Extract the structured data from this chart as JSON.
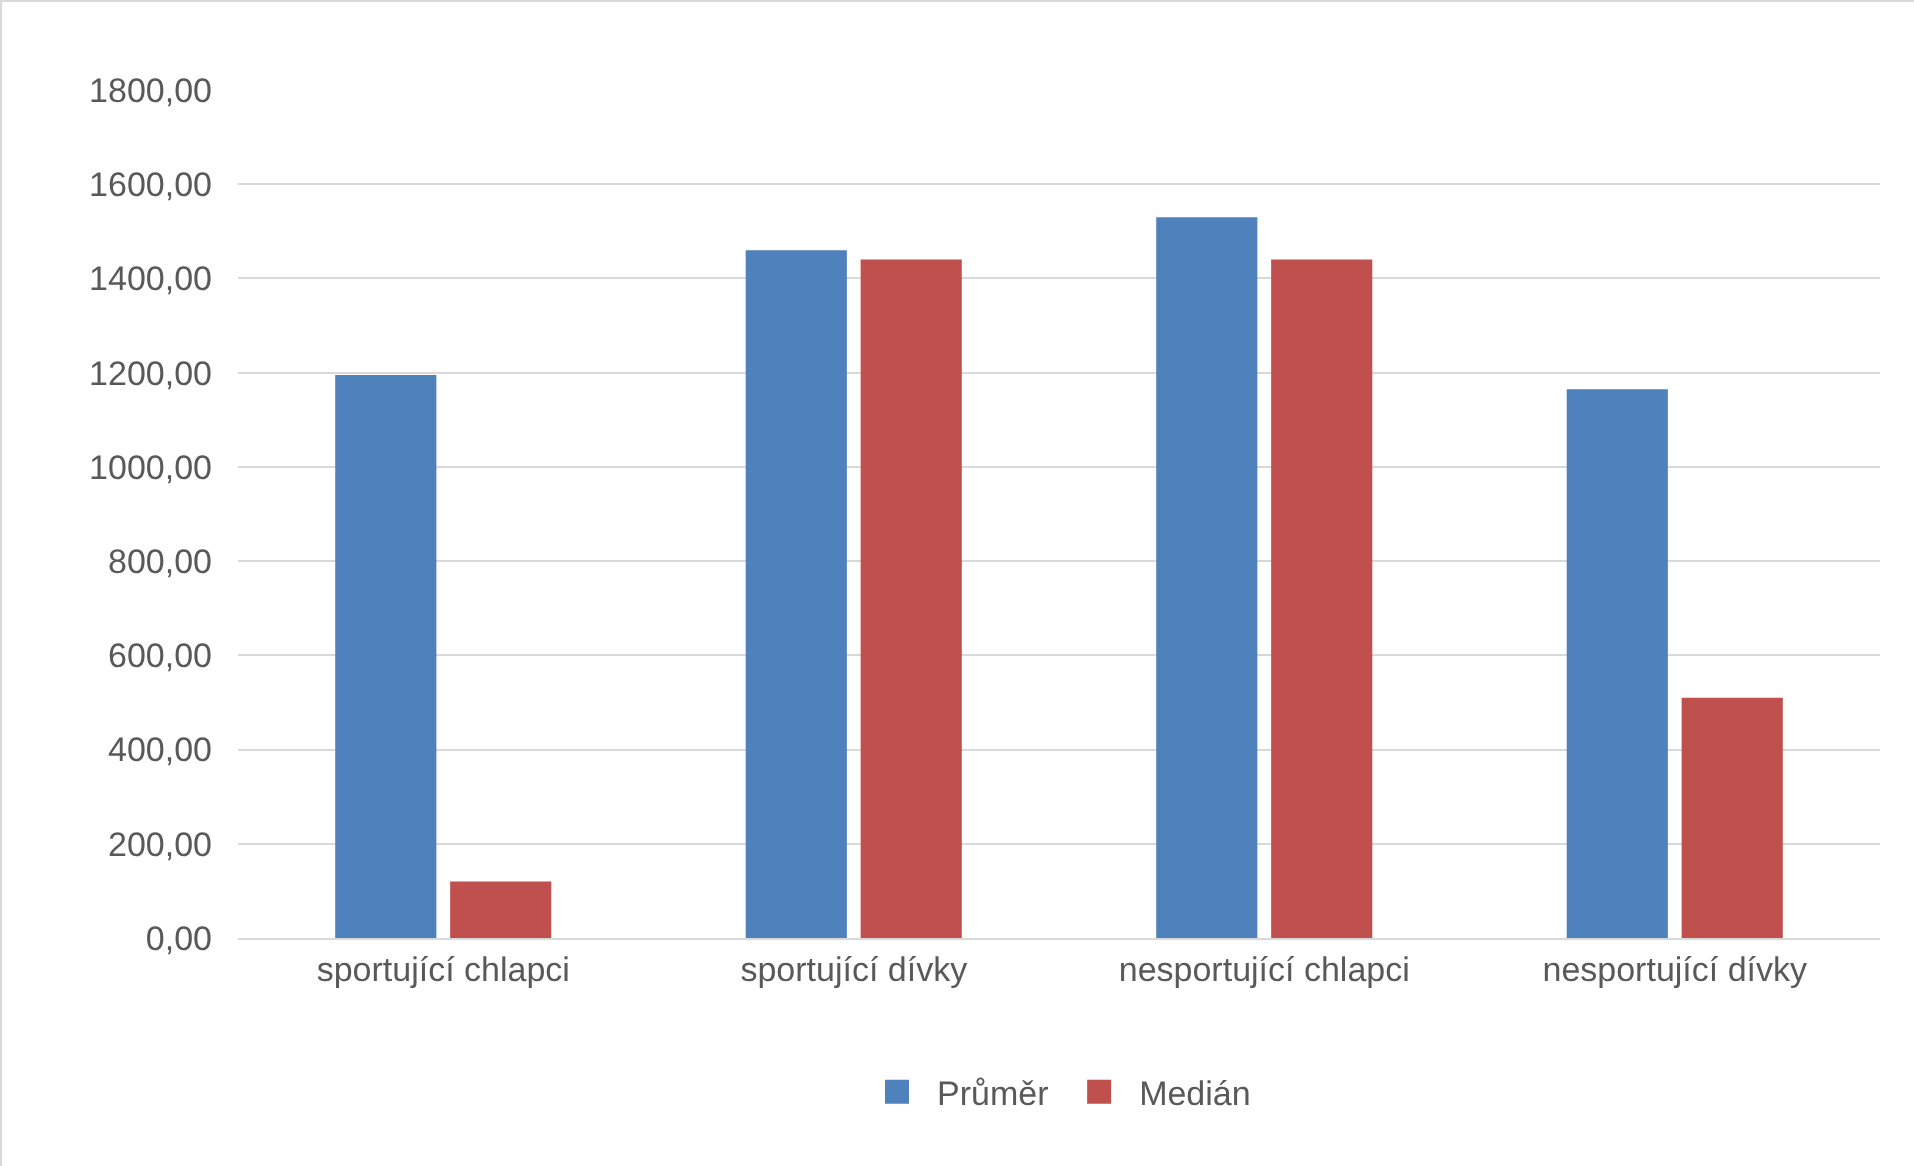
{
  "chart_data": {
    "type": "bar",
    "categories": [
      "sportující chlapci",
      "sportující dívky",
      "nesportující chlapci",
      "nesportující dívky"
    ],
    "series": [
      {
        "name": "Průměr",
        "color": "#4f81bd",
        "values": [
          1195,
          1460,
          1530,
          1165
        ]
      },
      {
        "name": "Medián",
        "color": "#c0504d",
        "values": [
          120,
          1440,
          1440,
          510
        ]
      }
    ],
    "ylim": [
      0,
      1800
    ],
    "yticks": [
      {
        "value": 0,
        "label": "0,00"
      },
      {
        "value": 200,
        "label": "200,00"
      },
      {
        "value": 400,
        "label": "400,00"
      },
      {
        "value": 600,
        "label": "600,00"
      },
      {
        "value": 800,
        "label": "800,00"
      },
      {
        "value": 1000,
        "label": "1000,00"
      },
      {
        "value": 1200,
        "label": "1200,00"
      },
      {
        "value": 1400,
        "label": "1400,00"
      },
      {
        "value": 1600,
        "label": "1600,00"
      },
      {
        "value": 1800,
        "label": "1800,00"
      }
    ],
    "grid": "y",
    "legend": "bottom"
  }
}
